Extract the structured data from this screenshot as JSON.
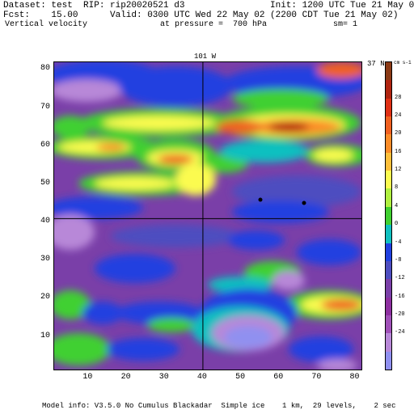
{
  "header": {
    "line1_left": "Dataset: test  RIP: rip20020521 d3",
    "line1_right": "Init: 1200 UTC Tue 21 May 02",
    "line2_left": "Fcst:    15.00",
    "line2_right": "Valid: 0300 UTC Wed 22 May 02 (2200 CDT Tue 21 May 02)",
    "line3_left": "Vertical velocity",
    "line3_mid": "at pressure =  700 hPa",
    "line3_right": "sm= 1"
  },
  "map": {
    "meridian_label": "101 W",
    "parallel_label": "37 N",
    "x_ticks": [
      "10",
      "20",
      "30",
      "40",
      "50",
      "60",
      "70",
      "80"
    ],
    "y_ticks": [
      "10",
      "20",
      "30",
      "40",
      "50",
      "60",
      "70",
      "80"
    ],
    "x_range": [
      1,
      82
    ],
    "y_range": [
      1,
      82
    ],
    "meridian_x": 40,
    "parallel_y": 41
  },
  "colorbar": {
    "units": "cm s-1",
    "labels": [
      "28",
      "24",
      "20",
      "16",
      "12",
      "8",
      "4",
      "0",
      "-4",
      "-8",
      "-12",
      "-16",
      "-20",
      "-24"
    ],
    "colors": [
      "#8b3a16",
      "#b02410",
      "#e03015",
      "#f06020",
      "#fb8c28",
      "#fdbf3a",
      "#fbfb50",
      "#b0f040",
      "#40d030",
      "#10c0c0",
      "#2040e0",
      "#4d4dc0",
      "#7a3fa8",
      "#8d2fa0",
      "#a050b8",
      "#b888d8",
      "#9090f0"
    ]
  },
  "footer": "Model info: V3.5.0 No Cumulus Blackadar  Simple ice    1 km,  29 levels,    2 sec"
}
